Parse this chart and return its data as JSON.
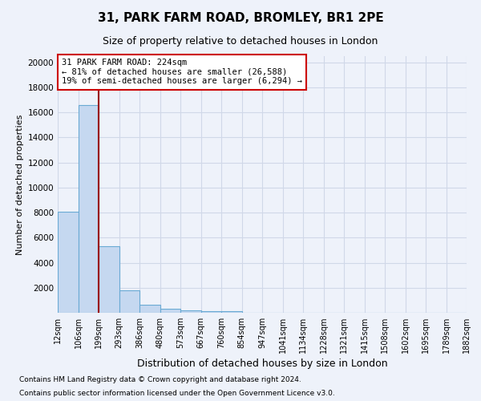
{
  "title1": "31, PARK FARM ROAD, BROMLEY, BR1 2PE",
  "title2": "Size of property relative to detached houses in London",
  "xlabel": "Distribution of detached houses by size in London",
  "ylabel": "Number of detached properties",
  "bar_values": [
    8100,
    16600,
    5300,
    1800,
    650,
    320,
    200,
    150,
    110,
    0,
    0,
    0,
    0,
    0,
    0,
    0,
    0,
    0,
    0,
    0
  ],
  "categories": [
    "12sqm",
    "106sqm",
    "199sqm",
    "293sqm",
    "386sqm",
    "480sqm",
    "573sqm",
    "667sqm",
    "760sqm",
    "854sqm",
    "947sqm",
    "1041sqm",
    "1134sqm",
    "1228sqm",
    "1321sqm",
    "1415sqm",
    "1508sqm",
    "1602sqm",
    "1695sqm",
    "1789sqm",
    "1882sqm"
  ],
  "bar_color": "#c5d8f0",
  "bar_edge_color": "#6aaad4",
  "vline_color": "#990000",
  "annotation_text": "31 PARK FARM ROAD: 224sqm\n← 81% of detached houses are smaller (26,588)\n19% of semi-detached houses are larger (6,294) →",
  "annotation_box_facecolor": "white",
  "annotation_box_edgecolor": "#cc0000",
  "ylim": [
    0,
    20500
  ],
  "yticks": [
    0,
    2000,
    4000,
    6000,
    8000,
    10000,
    12000,
    14000,
    16000,
    18000,
    20000
  ],
  "footnote1": "Contains HM Land Registry data © Crown copyright and database right 2024.",
  "footnote2": "Contains public sector information licensed under the Open Government Licence v3.0.",
  "bg_color": "#eef2fa",
  "grid_color": "#d0d8e8",
  "title1_fontsize": 11,
  "title2_fontsize": 9,
  "ylabel_fontsize": 8,
  "xlabel_fontsize": 9,
  "footnote_fontsize": 6.5,
  "tick_fontsize": 7,
  "ytick_fontsize": 7.5,
  "annot_fontsize": 7.5
}
